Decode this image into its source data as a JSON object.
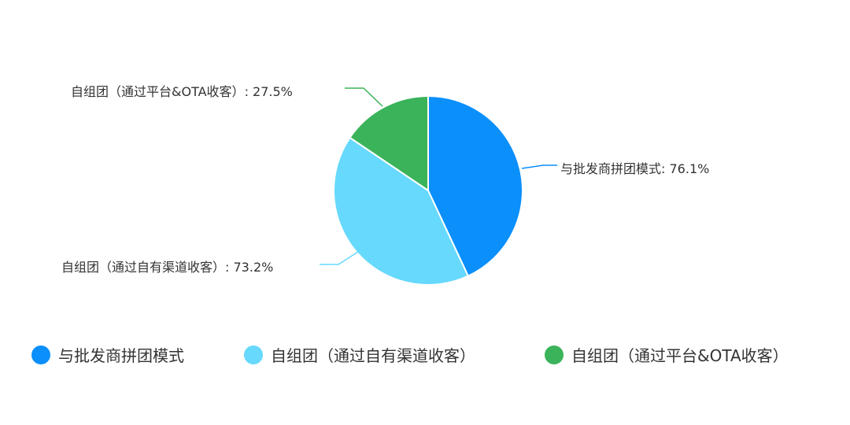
{
  "chart_data": {
    "type": "pie",
    "title": "",
    "unit": "%",
    "legend_position": "bottom",
    "series": [
      {
        "name": "与批发商拼团模式",
        "value": 76.1,
        "value_label": "76.1%",
        "color": "#0a8ffb"
      },
      {
        "name": "自组团（通过自有渠道收客）",
        "value": 73.2,
        "value_label": "73.2%",
        "color": "#66d9fd"
      },
      {
        "name": "自组团（通过平台&OTA收客）",
        "value": 27.5,
        "value_label": "27.5%",
        "color": "#3bb35a"
      }
    ]
  }
}
